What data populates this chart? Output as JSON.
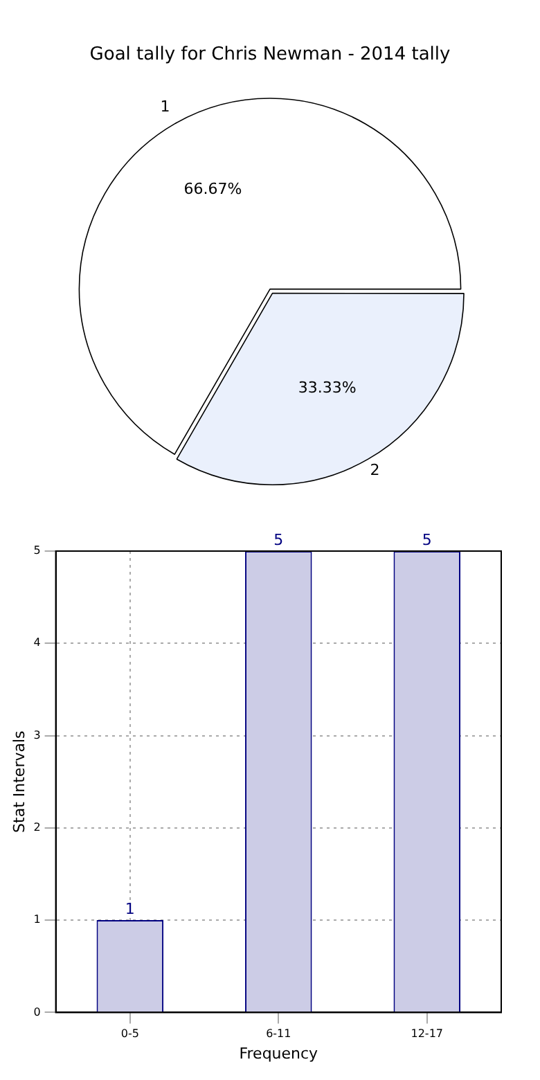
{
  "chart_data": [
    {
      "type": "pie",
      "title": "Goal tally for Chris Newman - 2014 tally",
      "categories": [
        "1",
        "2"
      ],
      "values": [
        66.67,
        33.33
      ],
      "colors": [
        "#ffffff",
        "#eaf0fc"
      ],
      "value_labels": [
        "66.67%",
        "33.33%"
      ],
      "legend": false
    },
    {
      "type": "bar",
      "categories": [
        "0-5",
        "6-11",
        "12-17"
      ],
      "values": [
        1,
        5,
        5
      ],
      "color": "#cccce6",
      "xlabel": "Frequency",
      "ylabel": "Stat Intervals",
      "ylim": [
        0,
        5
      ],
      "yticks": [
        0,
        1,
        2,
        3,
        4,
        5
      ],
      "grid": true,
      "data_labels": true,
      "legend": false
    }
  ]
}
